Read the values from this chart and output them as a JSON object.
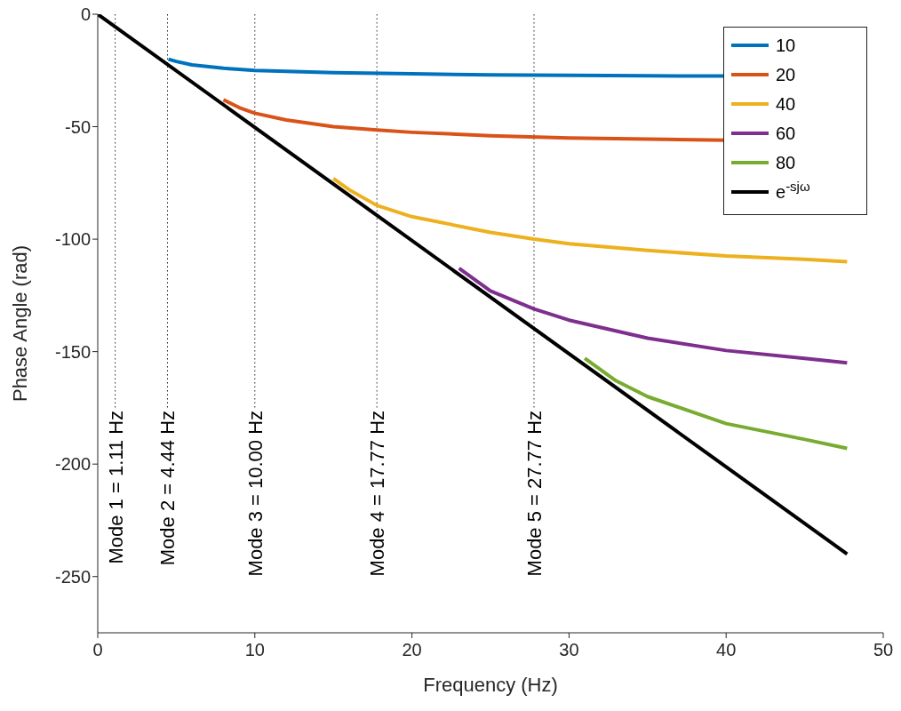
{
  "chart_data": {
    "type": "line",
    "xlabel": "Frequency (Hz)",
    "ylabel": "Phase Angle (rad)",
    "xlim": [
      0,
      50
    ],
    "xticks": [
      0,
      10,
      20,
      30,
      40,
      50
    ],
    "ylim": [
      -275,
      0
    ],
    "yticks": [
      -250,
      -200,
      -150,
      -100,
      -50,
      0
    ],
    "grid": false,
    "legend": "top right",
    "marker": "none",
    "line_style": "solid",
    "series": [
      {
        "name": "10",
        "color": "#0072bd",
        "x": [
          4.5,
          5,
          6,
          8,
          10,
          15,
          20,
          25,
          30,
          35,
          40
        ],
        "values": [
          -20,
          -21,
          -22.5,
          -24,
          -25,
          -26,
          -26.5,
          -27,
          -27.2,
          -27.4,
          -27.5
        ]
      },
      {
        "name": "20",
        "color": "#d95319",
        "x": [
          8,
          9,
          10,
          12,
          15,
          17.77,
          20,
          25,
          30,
          35,
          40
        ],
        "values": [
          -38,
          -41.5,
          -44,
          -47,
          -50,
          -51.5,
          -52.5,
          -54,
          -55,
          -55.5,
          -56
        ]
      },
      {
        "name": "40",
        "color": "#edb120",
        "x": [
          15,
          16,
          17.77,
          20,
          25,
          27.77,
          30,
          35,
          40,
          45,
          47.7
        ],
        "values": [
          -73,
          -78,
          -85,
          -90,
          -97,
          -100,
          -102,
          -105,
          -107.5,
          -109,
          -110
        ]
      },
      {
        "name": "60",
        "color": "#7e2f8e",
        "x": [
          23,
          24,
          25,
          27.77,
          30,
          35,
          40,
          45,
          47.7
        ],
        "values": [
          -113,
          -118,
          -123,
          -131,
          -136,
          -144,
          -149.5,
          -153,
          -155
        ]
      },
      {
        "name": "80",
        "color": "#77ac30",
        "x": [
          31,
          32,
          33,
          35,
          40,
          45,
          47.7
        ],
        "values": [
          -153,
          -158,
          -163,
          -170,
          -182,
          -189,
          -193
        ]
      },
      {
        "name": "e$^{-sjω}$",
        "color": "#000000",
        "x": [
          0,
          47.7
        ],
        "values": [
          0,
          -240
        ]
      }
    ],
    "ref_lines": [
      {
        "axis": "x",
        "value": 1.11,
        "label": "Mode 1 = 1.11 Hz",
        "line_style": "dotted"
      },
      {
        "axis": "x",
        "value": 4.44,
        "label": "Mode 2 = 4.44 Hz",
        "line_style": "dotted"
      },
      {
        "axis": "x",
        "value": 10,
        "label": "Mode 3 = 10.00 Hz",
        "line_style": "dotted"
      },
      {
        "axis": "x",
        "value": 17.77,
        "label": "Mode 4 = 17.77 Hz",
        "line_style": "dotted"
      },
      {
        "axis": "x",
        "value": 27.77,
        "label": "Mode 5 = 27.77 Hz",
        "line_style": "dotted"
      }
    ]
  }
}
